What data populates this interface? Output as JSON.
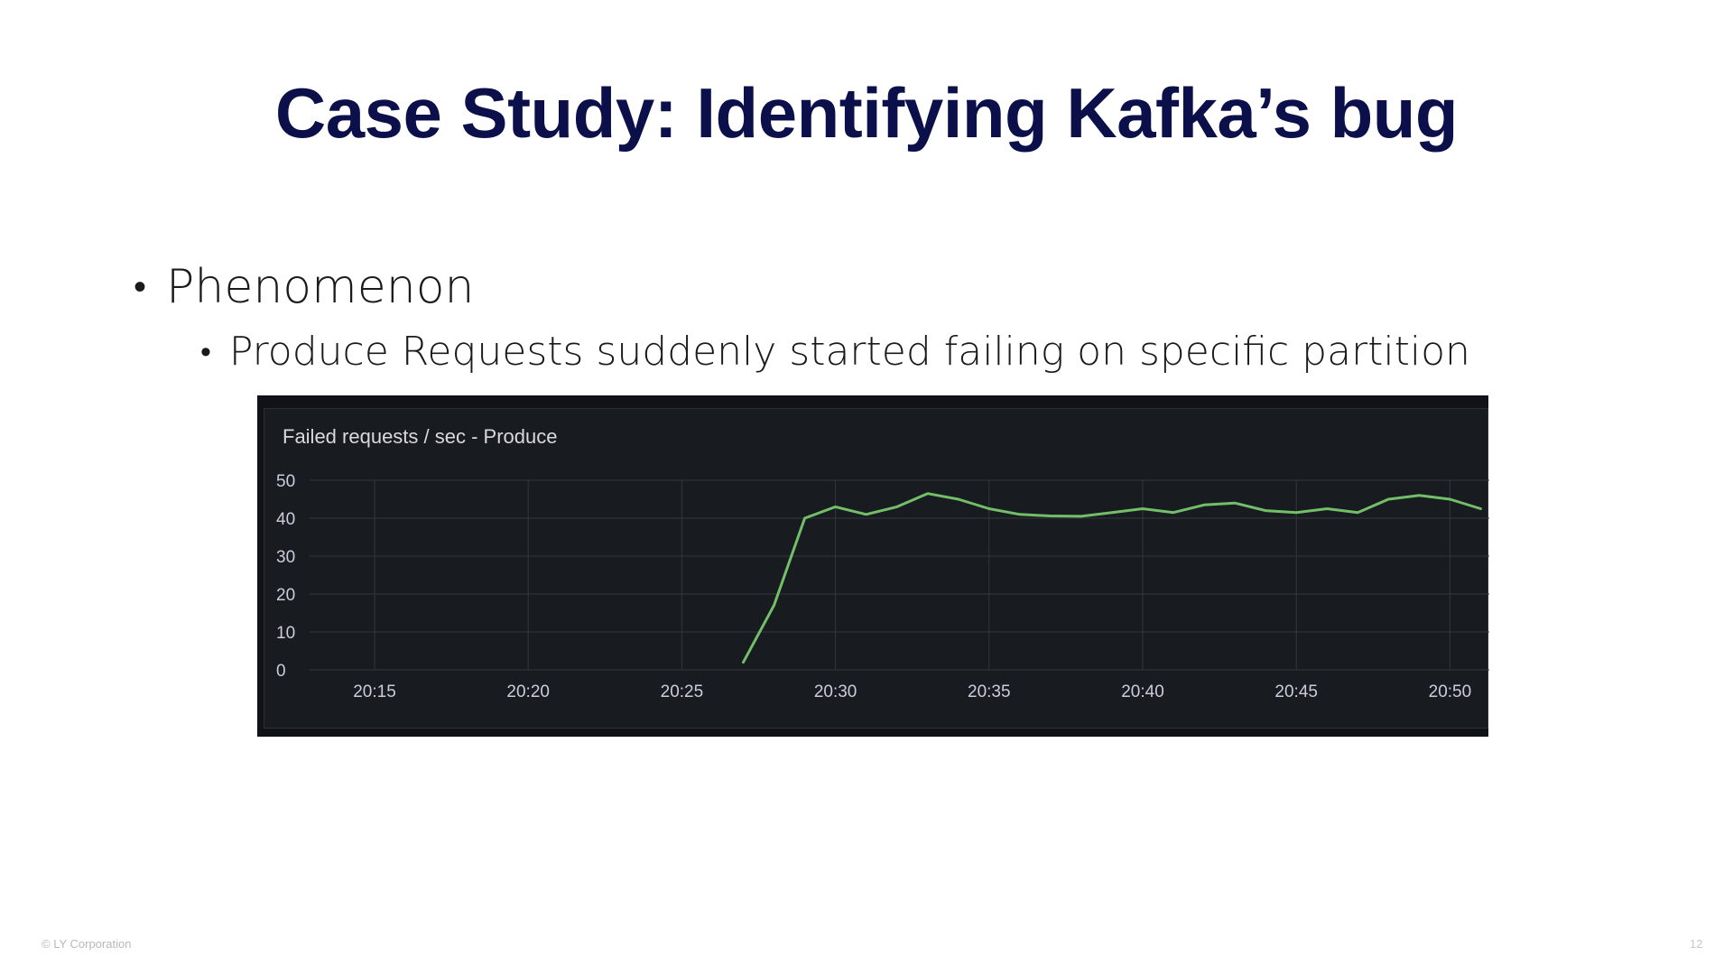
{
  "slide": {
    "title": "Case Study: Identifying Kafka’s bug",
    "bullet_1": "Phenomenon",
    "bullet_2": "Produce Requests suddenly started failing on specific partition",
    "bullet_glyph": "•"
  },
  "footer": {
    "copyright": "© LY Corporation",
    "page_number": "12"
  },
  "chart_data": {
    "type": "line",
    "title": "Failed requests / sec - Produce",
    "xlabel": "",
    "ylabel": "",
    "ylim": [
      0,
      50
    ],
    "yticks": [
      "0",
      "10",
      "20",
      "30",
      "40",
      "50"
    ],
    "xticks": [
      "20:15",
      "20:20",
      "20:25",
      "20:30",
      "20:35",
      "20:40",
      "20:45",
      "20:50"
    ],
    "grid": true,
    "background": "#181b1f",
    "line_color": "#73bf69",
    "series": [
      {
        "x": [
          "20:27",
          "20:28",
          "20:29",
          "20:30",
          "20:31",
          "20:32",
          "20:33",
          "20:34",
          "20:35",
          "20:36",
          "20:37",
          "20:38",
          "20:39",
          "20:40",
          "20:41",
          "20:42",
          "20:43",
          "20:44",
          "20:45",
          "20:46",
          "20:47",
          "20:48",
          "20:49",
          "20:50",
          "20:51"
        ],
        "values": [
          2,
          17,
          40,
          43,
          41,
          43,
          46.5,
          45,
          42.5,
          41,
          40.6,
          40.5,
          41.5,
          42.5,
          41.5,
          43.5,
          44,
          42,
          41.5,
          42.5,
          41.5,
          45,
          46,
          45,
          42.5
        ]
      }
    ]
  }
}
